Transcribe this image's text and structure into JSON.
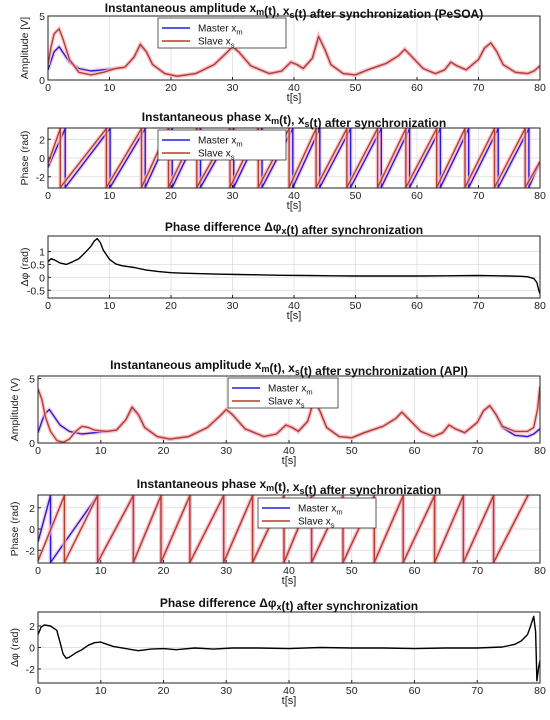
{
  "figure": {
    "colors": {
      "master": "#1f1fe0",
      "slave": "#b5402a",
      "diff": "#000000",
      "glow": "#f7b8c8",
      "grid": "#d9d9d9"
    }
  },
  "chart_data": [
    {
      "id": "p1",
      "type": "line",
      "title": "Instantaneous amplitude x_m(t), x_s(t) after synchronization (PeSOA)",
      "title_parts": {
        "a": "Instantaneous amplitude x",
        "b": "m",
        "c": "(t), x",
        "d": "s",
        "e": "(t) after synchronization (PeSOA)"
      },
      "xlabel": "t[s]",
      "ylabel": "Amplitude [V]",
      "xlim": [
        0,
        80
      ],
      "ylim": [
        0,
        5
      ],
      "xticks": [
        0,
        10,
        20,
        30,
        40,
        50,
        60,
        70,
        80
      ],
      "yticks": [
        0,
        5
      ],
      "grid": true,
      "legend_position": "top-left",
      "legend": [
        {
          "label": "Master x",
          "sub": "m",
          "color": "#1f1fe0"
        },
        {
          "label": "Slave x",
          "sub": "s",
          "color": "#b5402a"
        }
      ],
      "series": [
        {
          "name": "Master x_m",
          "color": "#1f1fe0",
          "x": [
            0,
            0.5,
            1,
            1.8,
            2.5,
            3.5,
            5,
            7,
            9,
            11,
            12.5,
            14,
            15,
            16,
            17,
            19,
            21,
            24,
            27,
            29,
            30,
            31,
            33,
            36,
            38,
            39.5,
            40.5,
            41.5,
            43,
            44,
            45,
            46,
            48,
            50,
            52,
            55,
            57,
            58,
            59,
            61,
            63,
            64.5,
            65.5,
            66.5,
            68,
            70,
            71,
            72,
            73,
            74,
            76,
            78,
            79,
            80
          ],
          "y": [
            0.8,
            1.5,
            2.2,
            2.6,
            2.1,
            1.4,
            0.9,
            0.7,
            0.8,
            0.9,
            1.0,
            1.8,
            2.7,
            2.2,
            1.2,
            0.5,
            0.3,
            0.5,
            1.2,
            2.1,
            2.6,
            2.2,
            1.1,
            0.5,
            0.7,
            1.4,
            1.2,
            0.9,
            1.7,
            3.4,
            2.4,
            1.2,
            0.5,
            0.4,
            0.8,
            1.3,
            1.9,
            2.4,
            1.9,
            0.9,
            0.5,
            0.8,
            1.4,
            1.1,
            0.8,
            1.6,
            2.5,
            2.9,
            2.2,
            1.2,
            0.6,
            0.5,
            0.7,
            1.1
          ]
        },
        {
          "name": "Slave x_s",
          "color": "#b5402a",
          "x": [
            0,
            0.5,
            1,
            1.8,
            2.5,
            3.5,
            5,
            7,
            9,
            11,
            12.5,
            14,
            15,
            16,
            17,
            19,
            21,
            24,
            27,
            29,
            30,
            31,
            33,
            36,
            38,
            39.5,
            40.5,
            41.5,
            43,
            44,
            45,
            46,
            48,
            50,
            52,
            55,
            57,
            58,
            59,
            61,
            63,
            64.5,
            65.5,
            66.5,
            68,
            70,
            71,
            72,
            73,
            74,
            76,
            78,
            79,
            80
          ],
          "y": [
            1.2,
            2.6,
            3.6,
            4.0,
            3.1,
            1.6,
            0.6,
            0.4,
            0.6,
            0.9,
            1.0,
            1.8,
            2.8,
            2.2,
            1.2,
            0.5,
            0.3,
            0.5,
            1.2,
            2.1,
            2.6,
            2.2,
            1.1,
            0.5,
            0.7,
            1.4,
            1.2,
            0.9,
            1.7,
            3.4,
            2.4,
            1.2,
            0.5,
            0.4,
            0.8,
            1.3,
            1.9,
            2.4,
            1.9,
            0.9,
            0.5,
            0.8,
            1.4,
            1.1,
            0.8,
            1.6,
            2.5,
            2.9,
            2.2,
            1.2,
            0.6,
            0.5,
            0.7,
            1.1
          ]
        }
      ]
    },
    {
      "id": "p2",
      "type": "line",
      "title": "Instantaneous phase x_m(t), x_s(t) after synchronization",
      "title_parts": {
        "a": "Instantaneous phase x",
        "b": "m",
        "c": "(t), x",
        "d": "s",
        "e": "(t) after synchronization"
      },
      "xlabel": "t[s]",
      "ylabel": "Phase (rad)",
      "xlim": [
        0,
        80
      ],
      "ylim": [
        -3.2,
        3.2
      ],
      "xticks": [
        0,
        10,
        20,
        30,
        40,
        50,
        60,
        70,
        80
      ],
      "yticks": [
        -2,
        0,
        2
      ],
      "grid": true,
      "legend_position": "top-left",
      "legend": [
        {
          "label": "Master x",
          "sub": "m",
          "color": "#1f1fe0"
        },
        {
          "label": "Slave x",
          "sub": "s",
          "color": "#b5402a"
        }
      ],
      "wrap_times": [
        2,
        9.5,
        15.2,
        19.6,
        24.2,
        29.6,
        34.2,
        39.2,
        43.6,
        48.6,
        53.6,
        58.2,
        63.2,
        67.8,
        72.6,
        77.6
      ],
      "series": [
        {
          "name": "Master x_m",
          "color": "#1f1fe0",
          "start": [
            0,
            -1.0
          ],
          "wrap_shift": [
            0.8,
            0.6
          ]
        },
        {
          "name": "Slave x_s",
          "color": "#b5402a",
          "start": [
            0,
            -0.6
          ],
          "wrap_shift": [
            0,
            0
          ]
        }
      ]
    },
    {
      "id": "p3",
      "type": "line",
      "title": "Phase difference Δφ_x(t) after synchronization",
      "title_parts": {
        "a": "Phase difference  Δφ",
        "b": "x",
        "c": "(t) after synchronization",
        "d": "",
        "e": ""
      },
      "xlabel": "t[s]",
      "ylabel": "Δφ (rad)",
      "xlim": [
        0,
        80
      ],
      "ylim": [
        -0.8,
        1.6
      ],
      "xticks": [
        0,
        10,
        20,
        30,
        40,
        50,
        60,
        70,
        80
      ],
      "yticks": [
        -0.5,
        0,
        0.5,
        1
      ],
      "ytick_labels": [
        "-0.5",
        "0",
        "0.5",
        "1"
      ],
      "grid": true,
      "series": [
        {
          "name": "",
          "color": "#000000",
          "x": [
            0,
            0.5,
            1,
            2,
            3,
            4,
            5,
            6,
            7,
            7.5,
            8,
            8.5,
            9,
            10,
            11,
            12,
            14,
            16,
            18,
            20,
            22,
            25,
            28,
            31,
            34,
            38,
            42,
            46,
            50,
            55,
            60,
            65,
            70,
            73,
            75,
            77,
            78,
            79,
            79.5,
            79.8,
            80
          ],
          "y": [
            0.6,
            0.72,
            0.68,
            0.55,
            0.5,
            0.6,
            0.72,
            0.95,
            1.2,
            1.4,
            1.5,
            1.35,
            1.05,
            0.7,
            0.52,
            0.45,
            0.38,
            0.28,
            0.22,
            0.18,
            0.16,
            0.14,
            0.12,
            0.11,
            0.1,
            0.08,
            0.07,
            0.06,
            0.05,
            0.05,
            0.05,
            0.06,
            0.07,
            0.06,
            0.05,
            0.04,
            0.02,
            -0.05,
            -0.2,
            -0.5,
            -0.65
          ]
        }
      ]
    },
    {
      "id": "p4",
      "type": "line",
      "title": "Instantaneous amplitude x_m(t), x_s(t) after synchronization (API)",
      "title_parts": {
        "a": "Instantaneous amplitude x",
        "b": "m",
        "c": "(t), x",
        "d": "s",
        "e": "(t) after synchronization (API)"
      },
      "xlabel": "t[s]",
      "ylabel": "Amplitude (V)",
      "xlim": [
        0,
        80
      ],
      "ylim": [
        0,
        5.2
      ],
      "xticks": [
        0,
        10,
        20,
        30,
        40,
        50,
        60,
        70,
        80
      ],
      "yticks": [
        0,
        5
      ],
      "grid": true,
      "legend_position": "top-right",
      "legend": [
        {
          "label": "Master x",
          "sub": "m",
          "color": "#1f1fe0"
        },
        {
          "label": "Slave x",
          "sub": "s",
          "color": "#b5402a"
        }
      ],
      "series": [
        {
          "name": "Master x_m",
          "color": "#1f1fe0",
          "x": [
            0,
            0.5,
            1,
            1.8,
            2.5,
            3.5,
            5,
            7,
            9,
            11,
            12.5,
            14,
            15,
            16,
            17,
            19,
            21,
            24,
            27,
            29,
            30,
            31,
            33,
            36,
            38,
            39.5,
            40.5,
            41.5,
            43,
            44,
            45,
            46,
            48,
            50,
            52,
            55,
            57,
            58,
            59,
            61,
            63,
            64.5,
            65.5,
            66.5,
            68,
            70,
            71,
            72,
            73,
            74,
            76,
            78,
            79,
            80
          ],
          "y": [
            0.8,
            1.5,
            2.2,
            2.6,
            2.1,
            1.4,
            0.9,
            0.7,
            0.8,
            0.9,
            1.0,
            1.8,
            2.7,
            2.2,
            1.2,
            0.5,
            0.3,
            0.5,
            1.2,
            2.1,
            2.6,
            2.2,
            1.1,
            0.5,
            0.7,
            1.4,
            1.2,
            0.9,
            1.7,
            3.4,
            2.4,
            1.2,
            0.5,
            0.4,
            0.8,
            1.3,
            1.9,
            2.4,
            1.9,
            0.9,
            0.5,
            0.8,
            1.4,
            1.1,
            0.8,
            1.6,
            2.5,
            2.9,
            2.2,
            1.2,
            0.6,
            0.5,
            0.7,
            1.1
          ]
        },
        {
          "name": "Slave x_s",
          "color": "#b5402a",
          "x": [
            0,
            0.6,
            1.2,
            2,
            3,
            4,
            5,
            6,
            7,
            8,
            9,
            11,
            12.5,
            14,
            15,
            16,
            17,
            19,
            21,
            24,
            27,
            29,
            30,
            31,
            33,
            36,
            38,
            39.5,
            40.5,
            41.5,
            43,
            44,
            45,
            46,
            48,
            50,
            52,
            55,
            57,
            58,
            59,
            61,
            63,
            64.5,
            65.5,
            66.5,
            68,
            70,
            71,
            72,
            73,
            74,
            76,
            78,
            79,
            79.6,
            80
          ],
          "y": [
            4.2,
            3.4,
            2.0,
            0.9,
            0.2,
            0.05,
            0.3,
            0.9,
            1.3,
            1.2,
            1.0,
            0.9,
            1.0,
            1.8,
            2.8,
            2.2,
            1.2,
            0.5,
            0.3,
            0.5,
            1.2,
            2.1,
            2.6,
            2.2,
            1.1,
            0.5,
            0.7,
            1.4,
            1.2,
            0.9,
            1.7,
            3.4,
            2.4,
            1.2,
            0.5,
            0.4,
            0.8,
            1.3,
            1.9,
            2.4,
            1.9,
            0.9,
            0.5,
            0.8,
            1.4,
            1.1,
            0.8,
            1.6,
            2.5,
            2.9,
            2.2,
            1.3,
            0.9,
            0.9,
            1.2,
            2.6,
            4.4
          ]
        }
      ]
    },
    {
      "id": "p5",
      "type": "line",
      "title": "Instantaneous phase x_m(t), x_s(t) after synchronization",
      "title_parts": {
        "a": "Instantaneous phase x",
        "b": "m",
        "c": "(t), x",
        "d": "s",
        "e": "(t) after synchronization"
      },
      "xlabel": "t[s]",
      "ylabel": "Phase (rad)",
      "xlim": [
        0,
        80
      ],
      "ylim": [
        -3.2,
        3.2
      ],
      "xticks": [
        0,
        10,
        20,
        30,
        40,
        50,
        60,
        70,
        80
      ],
      "yticks": [
        -2,
        0,
        2
      ],
      "grid": true,
      "legend_position": "middle-right",
      "legend": [
        {
          "label": "Master x",
          "sub": "m",
          "color": "#1f1fe0"
        },
        {
          "label": "Slave x",
          "sub": "s",
          "color": "#b5402a"
        }
      ],
      "wrap_times": [
        2,
        9.5,
        15.2,
        19.6,
        24.2,
        29.6,
        34.2,
        39.2,
        43.6,
        48.6,
        53.6,
        58.2,
        63.2,
        67.8,
        72.6
      ],
      "series": [
        {
          "name": "Master x_m",
          "color": "#1f1fe0",
          "start": [
            0,
            -1.2
          ],
          "wrap_shift": [
            0,
            0
          ]
        },
        {
          "name": "Slave x_s",
          "color": "#b5402a",
          "start": [
            0,
            -3.0
          ],
          "wrap_shift": [
            2.2,
            0
          ]
        }
      ]
    },
    {
      "id": "p6",
      "type": "line",
      "title": "Phase difference Δφ_x(t) after synchronization",
      "title_parts": {
        "a": "Phase difference  Δφ",
        "b": "x",
        "c": "(t) after synchronization",
        "d": "",
        "e": ""
      },
      "xlabel": "t[s]",
      "ylabel": "Δφ (rad)",
      "xlim": [
        0,
        80
      ],
      "ylim": [
        -3.3,
        3.3
      ],
      "xticks": [
        0,
        10,
        20,
        30,
        40,
        50,
        60,
        70,
        80
      ],
      "yticks": [
        -2,
        0,
        2
      ],
      "grid": true,
      "series": [
        {
          "name": "",
          "color": "#000000",
          "x": [
            0,
            0.5,
            1,
            2,
            3,
            3.5,
            4,
            4.5,
            5,
            6,
            7,
            8,
            9,
            10,
            11,
            12,
            14,
            16,
            18,
            20,
            22,
            25,
            28,
            31,
            35,
            40,
            45,
            50,
            55,
            60,
            65,
            70,
            74,
            76,
            77,
            78,
            78.5,
            79,
            79.3,
            79.5,
            79.8,
            80
          ],
          "y": [
            1.2,
            1.9,
            2.1,
            2.0,
            1.6,
            0.5,
            -0.6,
            -1.0,
            -0.9,
            -0.5,
            -0.2,
            0.2,
            0.45,
            0.5,
            0.3,
            0.1,
            -0.1,
            -0.3,
            -0.15,
            -0.1,
            -0.2,
            -0.05,
            -0.15,
            -0.05,
            -0.05,
            -0.1,
            0.0,
            -0.05,
            -0.05,
            -0.1,
            -0.05,
            -0.05,
            0.05,
            0.3,
            0.6,
            1.2,
            2.0,
            2.9,
            1.5,
            -3.1,
            -1.8,
            -1.2
          ]
        }
      ]
    }
  ]
}
